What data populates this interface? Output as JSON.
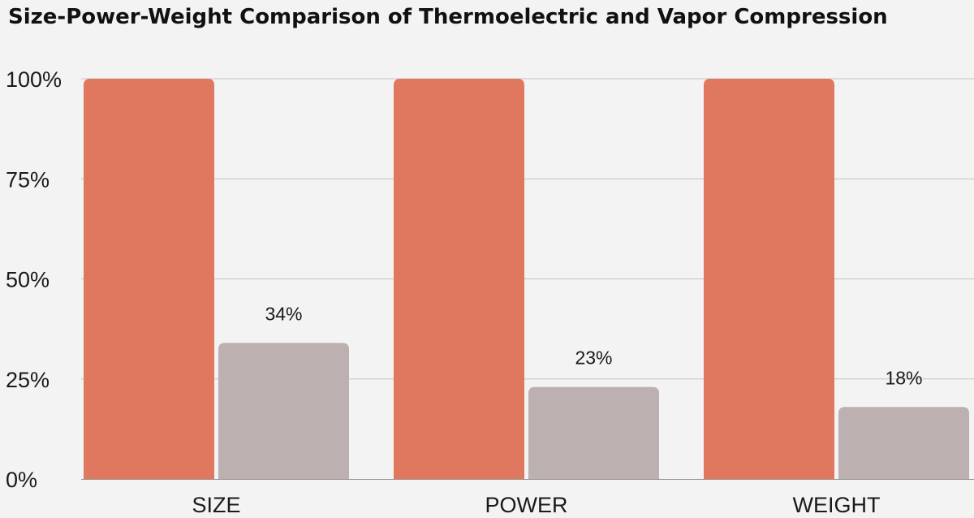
{
  "chart_data": {
    "type": "bar",
    "title": "Size-Power-Weight Comparison of Thermoelectric and Vapor Compression",
    "categories": [
      "SIZE",
      "POWER",
      "WEIGHT"
    ],
    "series": [
      {
        "values": [
          100,
          100,
          100
        ],
        "color": "#e07860",
        "show_labels": false
      },
      {
        "values": [
          34,
          23,
          18
        ],
        "color": "#bcb0b1",
        "show_labels": true
      }
    ],
    "data_labels": [
      "34%",
      "23%",
      "18%"
    ],
    "yticks": [
      {
        "value": 0,
        "label": "0%"
      },
      {
        "value": 25,
        "label": "25%"
      },
      {
        "value": 50,
        "label": "50%"
      },
      {
        "value": 75,
        "label": "75%"
      },
      {
        "value": 100,
        "label": "100%"
      }
    ],
    "ylim": [
      0,
      100
    ],
    "xlabel": "",
    "ylabel": "",
    "grid": true,
    "legend": "none"
  }
}
